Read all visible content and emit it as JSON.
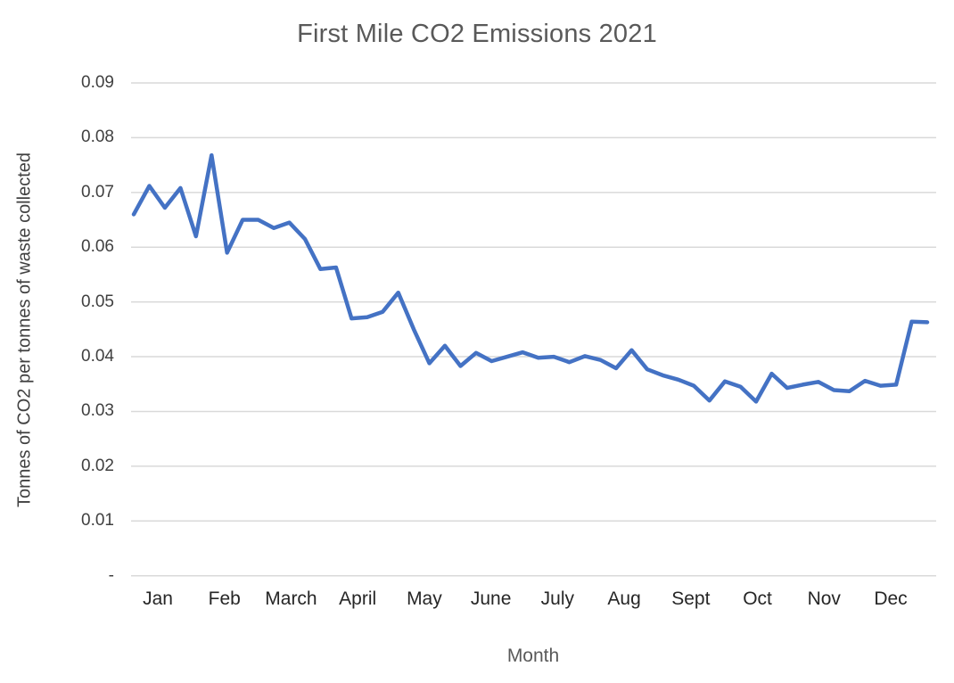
{
  "chart_data": {
    "type": "line",
    "title": "First Mile CO2 Emissions 2021",
    "xlabel": "Month",
    "ylabel": "Tonnes of CO2 per tonnes of waste collected",
    "categories": [
      "Jan",
      "Feb",
      "March",
      "April",
      "May",
      "June",
      "July",
      "Aug",
      "Sept",
      "Oct",
      "Nov",
      "Dec"
    ],
    "x_resolution": "weekly (approx. 52 points across 12 months)",
    "ylim": [
      0,
      0.09
    ],
    "y_tick_labels": [
      "0.09",
      "0.08",
      "0.07",
      "0.06",
      "0.05",
      "0.04",
      "0.03",
      "0.02",
      "0.01",
      "-"
    ],
    "grid": "horizontal",
    "legend": "none",
    "line_color": "#4472C4",
    "gridline_color": "#D9D9D9",
    "title_color": "#595959",
    "series": [
      {
        "name": "Tonnes of CO2 per tonnes of waste collected",
        "values": [
          0.066,
          0.0712,
          0.0672,
          0.0708,
          0.062,
          0.0768,
          0.059,
          0.065,
          0.065,
          0.0635,
          0.0645,
          0.0615,
          0.056,
          0.0563,
          0.047,
          0.0472,
          0.0482,
          0.0517,
          0.045,
          0.0388,
          0.042,
          0.0383,
          0.0407,
          0.0392,
          0.04,
          0.0408,
          0.0398,
          0.04,
          0.039,
          0.0401,
          0.0394,
          0.0379,
          0.0412,
          0.0377,
          0.0366,
          0.0358,
          0.0347,
          0.032,
          0.0355,
          0.0345,
          0.0318,
          0.0369,
          0.0343,
          0.0349,
          0.0354,
          0.0339,
          0.0337,
          0.0356,
          0.0347,
          0.0349,
          0.0464,
          0.0463
        ]
      }
    ]
  }
}
